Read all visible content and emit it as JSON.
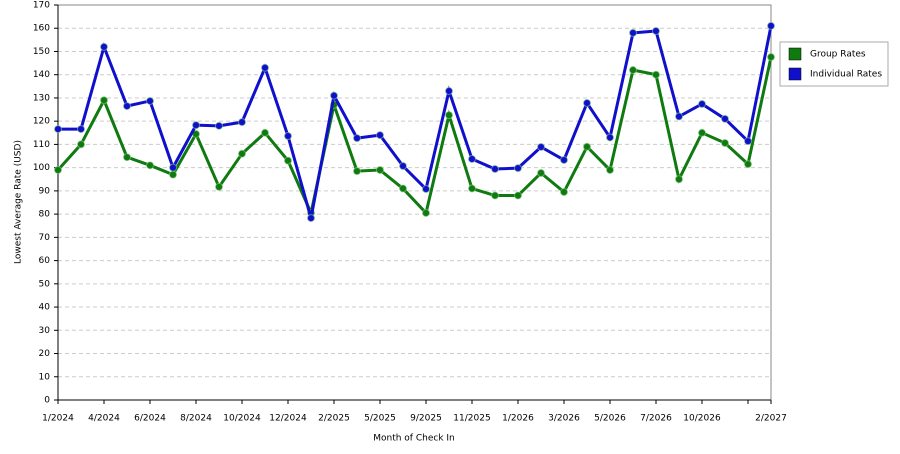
{
  "chart_data": {
    "type": "line",
    "xlabel": "Month of Check In",
    "ylabel": "Lowest Average Rate (USD)",
    "categories": [
      "1/2024",
      null,
      "4/2024",
      null,
      "6/2024",
      null,
      "8/2024",
      null,
      "10/2024",
      null,
      "12/2024",
      null,
      "2/2025",
      null,
      "5/2025",
      null,
      "9/2025",
      null,
      "11/2025",
      null,
      "1/2026",
      null,
      "3/2026",
      null,
      "5/2026",
      null,
      "7/2026",
      null,
      "10/2026",
      null,
      null,
      "2/2027"
    ],
    "series": [
      {
        "name": "Group Rates",
        "color": "#0f7a0f",
        "values": [
          99,
          110,
          129,
          104.5,
          101,
          97,
          114.5,
          91.7,
          106,
          115,
          103,
          80.5,
          127,
          98.5,
          99,
          91,
          80.5,
          122.6,
          91,
          88,
          88,
          97.7,
          89.5,
          109,
          99,
          142,
          140,
          95,
          115,
          110.6,
          101.5,
          147.6
        ]
      },
      {
        "name": "Individual Rates",
        "color": "#1010cc",
        "values": [
          116.6,
          116.6,
          152,
          126.5,
          128.7,
          100,
          118.3,
          118,
          119.6,
          143,
          113.6,
          78.3,
          131,
          112.7,
          114,
          100.7,
          90.8,
          133,
          103.7,
          99.4,
          99.8,
          108.9,
          103.3,
          127.8,
          113,
          158,
          158.8,
          122,
          127.4,
          121,
          111.4,
          161
        ]
      }
    ],
    "ylim": [
      0,
      170
    ],
    "yticks": [
      0,
      10,
      20,
      30,
      40,
      50,
      60,
      70,
      80,
      90,
      100,
      110,
      120,
      130,
      140,
      150,
      160,
      170
    ],
    "grid": true,
    "legend": "right"
  }
}
